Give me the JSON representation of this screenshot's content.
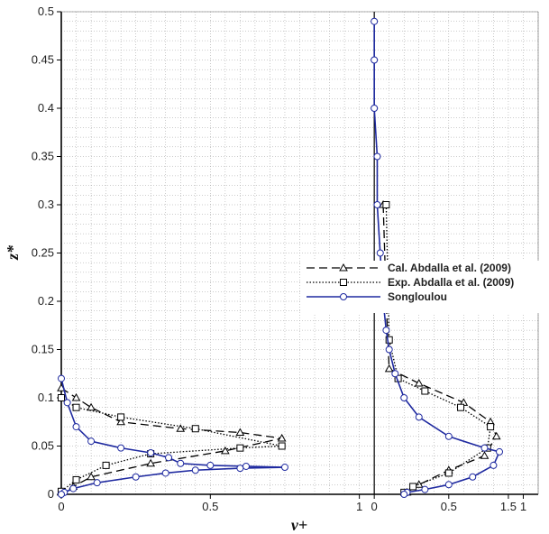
{
  "chart_data": {
    "type": "line",
    "xlabel": "v+",
    "ylabel": "z*",
    "xlim": [
      0,
      1.6
    ],
    "ylim": [
      0,
      0.5
    ],
    "grid": true,
    "legend_position": "right",
    "x_ticks": [
      {
        "value": 0,
        "label": "0"
      },
      {
        "value": 0.5,
        "label": "0.5"
      },
      {
        "value": 1,
        "label": "1"
      },
      {
        "value": 1.5,
        "label": "1.5"
      }
    ],
    "y_ticks": [
      {
        "value": 0,
        "label": "0"
      },
      {
        "value": 0.05,
        "label": "0.05"
      },
      {
        "value": 0.1,
        "label": "0.1"
      },
      {
        "value": 0.15,
        "label": "0.15"
      },
      {
        "value": 0.2,
        "label": "0.2"
      },
      {
        "value": 0.25,
        "label": "0.25"
      },
      {
        "value": 0.3,
        "label": "0.3"
      },
      {
        "value": 0.35,
        "label": "0.35"
      },
      {
        "value": 0.4,
        "label": "0.4"
      },
      {
        "value": 0.45,
        "label": "0.45"
      },
      {
        "value": 0.5,
        "label": "0.5"
      }
    ],
    "secondary_x_ticks": [
      {
        "value": 1.05,
        "label": "0"
      },
      {
        "value": 1.3,
        "label": "0.5"
      },
      {
        "value": 1.55,
        "label": "1"
      },
      {
        "value": 1.8,
        "label": "1.5"
      }
    ],
    "series": [
      {
        "name": "Cal. Abdalla et al. (2009)",
        "style": "dashed",
        "marker": "triangle",
        "color": "#000000",
        "x": [
          0.0,
          0.05,
          0.1,
          0.2,
          0.4,
          0.6,
          0.74,
          0.55,
          0.3,
          0.1,
          0.04,
          0.0
        ],
        "y": [
          0.11,
          0.1,
          0.09,
          0.075,
          0.068,
          0.064,
          0.058,
          0.045,
          0.032,
          0.018,
          0.008,
          0.002
        ],
        "x2": [
          1.08,
          1.09,
          1.1,
          1.2,
          1.35,
          1.44,
          1.46,
          1.42,
          1.3,
          1.2,
          1.16
        ],
        "y2": [
          0.3,
          0.2,
          0.13,
          0.115,
          0.095,
          0.075,
          0.06,
          0.04,
          0.025,
          0.01,
          0.002
        ]
      },
      {
        "name": "Exp. Abdalla et al. (2009)",
        "style": "dotted",
        "marker": "square",
        "color": "#000000",
        "x": [
          0.0,
          0.05,
          0.2,
          0.45,
          0.74,
          0.6,
          0.3,
          0.15,
          0.05,
          0.0
        ],
        "y": [
          0.1,
          0.09,
          0.08,
          0.068,
          0.05,
          0.048,
          0.042,
          0.03,
          0.015,
          0.003
        ],
        "x2": [
          1.09,
          1.1,
          1.13,
          1.22,
          1.34,
          1.44,
          1.43,
          1.3,
          1.18,
          1.15
        ],
        "y2": [
          0.3,
          0.16,
          0.12,
          0.107,
          0.09,
          0.07,
          0.048,
          0.022,
          0.008,
          0.002
        ]
      },
      {
        "name": "Songloulou",
        "style": "solid",
        "marker": "circle",
        "color": "#1f2aa0",
        "x": [
          0.0,
          0.02,
          0.05,
          0.1,
          0.2,
          0.3,
          0.36,
          0.4,
          0.5,
          0.62,
          0.75,
          0.6,
          0.45,
          0.35,
          0.25,
          0.12,
          0.04,
          0.01,
          0.0
        ],
        "y": [
          0.12,
          0.095,
          0.07,
          0.055,
          0.048,
          0.043,
          0.038,
          0.032,
          0.03,
          0.029,
          0.028,
          0.027,
          0.025,
          0.022,
          0.018,
          0.012,
          0.006,
          0.002,
          0.0
        ],
        "x2": [
          1.05,
          1.05,
          1.05,
          1.06,
          1.06,
          1.07,
          1.08,
          1.09,
          1.1,
          1.12,
          1.15,
          1.2,
          1.3,
          1.42,
          1.47,
          1.45,
          1.38,
          1.3,
          1.22,
          1.16,
          1.15
        ],
        "y2": [
          0.49,
          0.45,
          0.4,
          0.35,
          0.3,
          0.25,
          0.2,
          0.17,
          0.15,
          0.125,
          0.1,
          0.08,
          0.06,
          0.048,
          0.044,
          0.03,
          0.018,
          0.01,
          0.005,
          0.002,
          0.0
        ]
      }
    ]
  }
}
